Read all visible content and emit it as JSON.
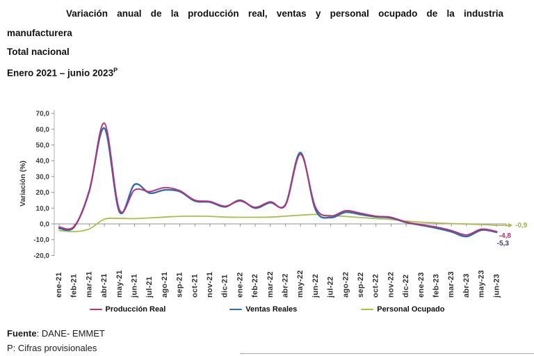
{
  "header": {
    "title": "Variación anual de la producción real, ventas y personal ocupado de la industria manufacturera",
    "subtitle1": "Total nacional",
    "subtitle2": "Enero 2021 – junio 2023",
    "subtitle2_superscript": "P"
  },
  "footer": {
    "source_label": "Fuente",
    "source_rest": ": DANE- EMMET",
    "note": "P: Cifras provisionales"
  },
  "chart_data": {
    "type": "line",
    "title": "Variación anual de la producción real, ventas y personal ocupado de la industria manufacturera — Total nacional — Enero 2021 – junio 2023 (P)",
    "xlabel": "",
    "ylabel": "Variación (%)",
    "ylim": [
      -20,
      70
    ],
    "ytick_step": 10,
    "grid": false,
    "legend_position": "bottom",
    "categories": [
      "ene-21",
      "feb-21",
      "mar-21",
      "abr-21",
      "may-21",
      "jun-21",
      "jul-21",
      "ago-21",
      "sep-21",
      "oct-21",
      "nov-21",
      "dic-21",
      "ene-22",
      "feb-22",
      "mar-22",
      "abr-22",
      "may-22",
      "jun-22",
      "jul-22",
      "ago-22",
      "sep-22",
      "oct-22",
      "nov-22",
      "dic-22",
      "ene-23",
      "feb-23",
      "mar-23",
      "abr-23",
      "may-23",
      "jun-23"
    ],
    "series": [
      {
        "name": "Producción Real",
        "color": "#C02C76",
        "end_label": "-4,8",
        "end_label_color": "#C02C76",
        "values": [
          -2.0,
          -1.5,
          20.5,
          63.8,
          9.0,
          21.5,
          20.5,
          23.0,
          21.0,
          15.0,
          14.2,
          11.2,
          14.5,
          10.5,
          14.0,
          11.8,
          44.0,
          10.4,
          5.0,
          8.4,
          6.7,
          4.9,
          4.2,
          1.2,
          -0.5,
          -2.0,
          -4.2,
          -7.0,
          -3.3,
          -4.8
        ]
      },
      {
        "name": "Ventas Reales",
        "color": "#2C6FAD",
        "end_label": "-5,3",
        "end_label_color": "#3A3F5C",
        "values": [
          -2.8,
          -2.0,
          21.0,
          60.6,
          7.6,
          25.0,
          19.5,
          21.5,
          20.5,
          14.5,
          13.8,
          10.8,
          15.0,
          10.0,
          13.5,
          12.2,
          45.2,
          8.8,
          4.0,
          7.4,
          5.9,
          4.5,
          3.8,
          0.9,
          -0.8,
          -2.7,
          -5.0,
          -8.0,
          -3.9,
          -5.3
        ]
      },
      {
        "name": "Personal Ocupado",
        "color": "#A8BE4C",
        "end_label": "-0,9",
        "end_label_color": "#9DB63E",
        "arrow_end": true,
        "values": [
          -4.2,
          -4.9,
          -3.2,
          3.0,
          3.5,
          3.3,
          3.8,
          4.3,
          4.8,
          4.9,
          4.8,
          4.3,
          4.2,
          4.2,
          4.3,
          4.9,
          5.5,
          6.0,
          5.3,
          4.7,
          4.0,
          3.4,
          2.8,
          1.8,
          1.1,
          0.6,
          0.2,
          -0.1,
          -0.4,
          -0.9
        ]
      }
    ]
  }
}
